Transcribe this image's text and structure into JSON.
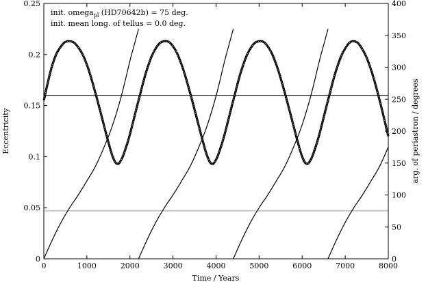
{
  "chart_data": {
    "type": "line",
    "xlabel": "Time / Years",
    "ylabel_left": "Eccentricity",
    "ylabel_right": "arg. of periastron / degrees",
    "xlim": [
      0,
      8000
    ],
    "ylim_left": [
      0,
      0.25
    ],
    "ylim_right": [
      0,
      400
    ],
    "x_ticks": [
      0,
      1000,
      2000,
      3000,
      4000,
      5000,
      6000,
      7000,
      8000
    ],
    "y_left_ticks": [
      "0",
      "0.05",
      "0.1",
      "0.15",
      "0.2",
      "0.25"
    ],
    "y_right_ticks": [
      "0",
      "50",
      "100",
      "150",
      "200",
      "250",
      "300",
      "350",
      "400"
    ],
    "grid": false,
    "annotations": [
      {
        "prefix": "init. omega",
        "subscript": "pl",
        "suffix": " (HD70642b) = 75 deg."
      },
      {
        "text": "init. mean long. of tellus = 0.0 deg."
      }
    ],
    "reference_lines": [
      {
        "axis": "right",
        "value": 256,
        "color": "#000000"
      },
      {
        "axis": "right",
        "value": 75,
        "color": "#999999"
      }
    ],
    "series": [
      {
        "axis": "left",
        "x": [
          0,
          200,
          400,
          600,
          800,
          1000,
          1200,
          1400,
          1500,
          1600,
          1700,
          1800,
          1900,
          2000,
          2200,
          2400,
          2600,
          2800,
          3000,
          3200,
          3400,
          3600,
          3700,
          3800,
          3900,
          4000,
          4100,
          4200,
          4400,
          4600,
          4800,
          5000,
          5200,
          5400,
          5600,
          5800,
          5900,
          6000,
          6100,
          6200,
          6300,
          6400,
          6600,
          6800,
          7000,
          7200,
          7400,
          7600,
          7800,
          8000
        ],
        "values": [
          0.155,
          0.19,
          0.208,
          0.213,
          0.207,
          0.19,
          0.162,
          0.13,
          0.114,
          0.1,
          0.093,
          0.097,
          0.108,
          0.122,
          0.155,
          0.186,
          0.206,
          0.213,
          0.208,
          0.19,
          0.162,
          0.13,
          0.114,
          0.1,
          0.093,
          0.097,
          0.108,
          0.122,
          0.155,
          0.186,
          0.206,
          0.213,
          0.208,
          0.19,
          0.162,
          0.13,
          0.114,
          0.1,
          0.093,
          0.097,
          0.108,
          0.122,
          0.155,
          0.186,
          0.206,
          0.213,
          0.205,
          0.185,
          0.155,
          0.12
        ]
      },
      {
        "axis": "right",
        "x": [
          0,
          200,
          400,
          600,
          800,
          1000,
          1200,
          1400,
          1600,
          1800,
          2000,
          2100,
          2200
        ],
        "values": [
          0,
          30,
          57,
          80,
          100,
          122,
          145,
          175,
          210,
          255,
          310,
          335,
          360
        ]
      },
      {
        "axis": "right",
        "x": [
          2200,
          2400,
          2600,
          2800,
          3000,
          3200,
          3400,
          3600,
          3800,
          4000,
          4200,
          4300,
          4400
        ],
        "values": [
          0,
          30,
          57,
          80,
          100,
          122,
          145,
          175,
          210,
          255,
          310,
          335,
          360
        ]
      },
      {
        "axis": "right",
        "x": [
          4400,
          4600,
          4800,
          5000,
          5200,
          5400,
          5600,
          5800,
          6000,
          6200,
          6400,
          6500,
          6600
        ],
        "values": [
          0,
          30,
          57,
          80,
          100,
          122,
          145,
          175,
          210,
          255,
          310,
          335,
          360
        ]
      },
      {
        "axis": "right",
        "x": [
          6600,
          6800,
          7000,
          7200,
          7400,
          7600,
          7800,
          8000
        ],
        "values": [
          0,
          30,
          57,
          80,
          100,
          122,
          145,
          175
        ]
      }
    ]
  }
}
